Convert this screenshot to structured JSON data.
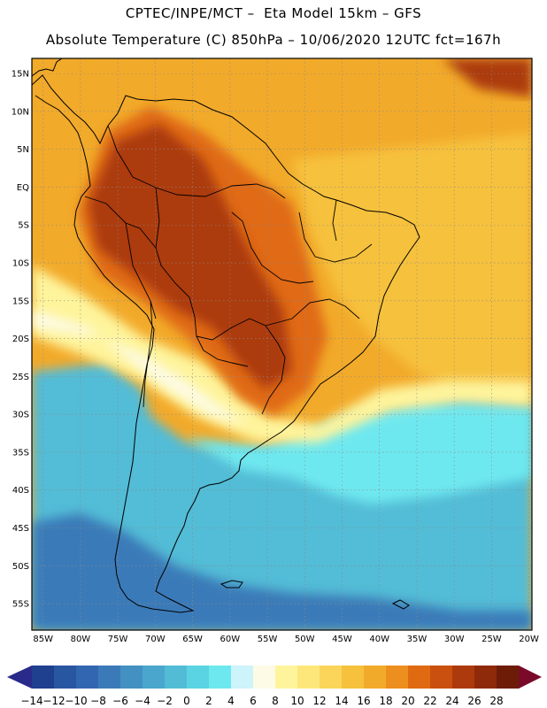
{
  "title_line1": "CPTEC/INPE/MCT –  Eta Model 15km – GFS",
  "title_line2": "Absolute Temperature (C) 850hPa – 10/06/2020 12UTC fct=167h",
  "map": {
    "region": "South America",
    "lat_labels": [
      "15N",
      "10N",
      "5N",
      "EQ",
      "5S",
      "10S",
      "15S",
      "20S",
      "25S",
      "30S",
      "35S",
      "40S",
      "45S",
      "50S",
      "55S"
    ],
    "lon_labels": [
      "85W",
      "80W",
      "75W",
      "70W",
      "65W",
      "60W",
      "55W",
      "50W",
      "45W",
      "40W",
      "35W",
      "30W",
      "25W",
      "20W"
    ]
  },
  "colorbar": {
    "labels": [
      "-14",
      "-12",
      "-10",
      "-8",
      "-6",
      "-4",
      "-2",
      "0",
      "2",
      "4",
      "6",
      "8",
      "10",
      "12",
      "14",
      "16",
      "18",
      "20",
      "22",
      "24",
      "26",
      "28"
    ],
    "colors": [
      "#1f3f8f",
      "#2856a0",
      "#3366b0",
      "#3b7ab8",
      "#4390c2",
      "#4aa6cc",
      "#52bcd6",
      "#5ad4e2",
      "#6ee8ef",
      "#cdf3fb",
      "#fdfbe6",
      "#fef49c",
      "#fde77a",
      "#fbd55a",
      "#f6c13c",
      "#f2aa2a",
      "#ed8f1e",
      "#e06a12",
      "#c9500e",
      "#ac3a0c",
      "#8e2a0a",
      "#6d1c08"
    ],
    "min_color": "#2a2a8a",
    "max_color": "#7a0a2a"
  },
  "palette": {
    "ocean_cold": "#52bcd6",
    "ocean_cool": "#5ad4e2",
    "ocean_cyan": "#6ee8ef",
    "deep_cold": "#3b7ab8",
    "warm_ocean": "#f2aa2a",
    "warm_mid": "#f6c13c",
    "hot": "#e06a12",
    "very_hot": "#ac3a0c",
    "light_yellow": "#fef49c",
    "pale": "#fdfbe6"
  }
}
